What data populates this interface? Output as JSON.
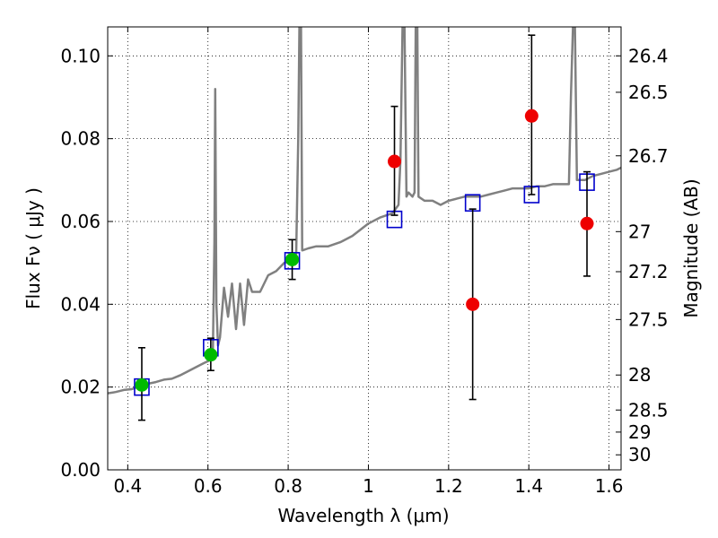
{
  "chart_data": {
    "type": "scatter",
    "xlabel": "Wavelength  λ (μm)",
    "ylabel": "Flux  Fν  ( μJy )",
    "ylabel_right": "Magnitude (AB)",
    "xlim": [
      0.35,
      1.63
    ],
    "ylim": [
      0.0,
      0.107
    ],
    "grid": true,
    "x_ticks": [
      0.4,
      0.6,
      0.8,
      1.0,
      1.2,
      1.4,
      1.6
    ],
    "x_tick_labels": [
      "0.4",
      "0.6",
      "0.8",
      "1",
      "1.2",
      "1.4",
      "1.6"
    ],
    "y_ticks": [
      0.0,
      0.02,
      0.04,
      0.06,
      0.08,
      0.1
    ],
    "y_tick_labels": [
      "0.00",
      "0.02",
      "0.04",
      "0.06",
      "0.08",
      "0.10"
    ],
    "mag_ticks": [
      26.4,
      26.5,
      26.7,
      27,
      27.2,
      27.5,
      28,
      28.5,
      29,
      30
    ],
    "mag_tick_labels": [
      "26.4",
      "26.5",
      "26.7",
      "27",
      "27.2",
      "27.5",
      "28",
      "28.5",
      "29",
      "30"
    ],
    "colors": {
      "model": "#808080",
      "model_phot": "#0000cc",
      "detections": "#00bb00",
      "upper_obs": "#ee0000",
      "errorbar": "#000000"
    },
    "series": [
      {
        "kind": "line",
        "points": [
          [
            0.35,
            0.0185
          ],
          [
            0.37,
            0.0188
          ],
          [
            0.39,
            0.0193
          ],
          [
            0.41,
            0.0195
          ],
          [
            0.43,
            0.0202
          ],
          [
            0.45,
            0.0208
          ],
          [
            0.47,
            0.0212
          ],
          [
            0.49,
            0.0218
          ],
          [
            0.51,
            0.022
          ],
          [
            0.53,
            0.0228
          ],
          [
            0.55,
            0.0238
          ],
          [
            0.57,
            0.0248
          ],
          [
            0.59,
            0.0258
          ],
          [
            0.605,
            0.0265
          ],
          [
            0.612,
            0.027
          ],
          [
            0.616,
            0.055
          ],
          [
            0.618,
            0.092
          ],
          [
            0.621,
            0.04
          ],
          [
            0.625,
            0.03
          ],
          [
            0.63,
            0.032
          ],
          [
            0.64,
            0.044
          ],
          [
            0.65,
            0.037
          ],
          [
            0.66,
            0.045
          ],
          [
            0.67,
            0.034
          ],
          [
            0.68,
            0.045
          ],
          [
            0.69,
            0.035
          ],
          [
            0.7,
            0.046
          ],
          [
            0.71,
            0.043
          ],
          [
            0.73,
            0.043
          ],
          [
            0.75,
            0.047
          ],
          [
            0.77,
            0.048
          ],
          [
            0.79,
            0.05
          ],
          [
            0.81,
            0.0505
          ],
          [
            0.82,
            0.052
          ],
          [
            0.825,
            0.08
          ],
          [
            0.828,
            0.107
          ],
          [
            0.832,
            0.107
          ],
          [
            0.835,
            0.053
          ],
          [
            0.85,
            0.0535
          ],
          [
            0.87,
            0.054
          ],
          [
            0.9,
            0.054
          ],
          [
            0.93,
            0.055
          ],
          [
            0.96,
            0.0565
          ],
          [
            0.98,
            0.058
          ],
          [
            1.0,
            0.0595
          ],
          [
            1.03,
            0.061
          ],
          [
            1.06,
            0.062
          ],
          [
            1.075,
            0.064
          ],
          [
            1.08,
            0.075
          ],
          [
            1.085,
            0.107
          ],
          [
            1.09,
            0.107
          ],
          [
            1.095,
            0.066
          ],
          [
            1.1,
            0.067
          ],
          [
            1.11,
            0.066
          ],
          [
            1.115,
            0.067
          ],
          [
            1.118,
            0.107
          ],
          [
            1.122,
            0.107
          ],
          [
            1.125,
            0.066
          ],
          [
            1.14,
            0.065
          ],
          [
            1.16,
            0.065
          ],
          [
            1.18,
            0.064
          ],
          [
            1.2,
            0.065
          ],
          [
            1.22,
            0.0655
          ],
          [
            1.24,
            0.066
          ],
          [
            1.26,
            0.066
          ],
          [
            1.28,
            0.066
          ],
          [
            1.3,
            0.0665
          ],
          [
            1.32,
            0.067
          ],
          [
            1.34,
            0.0675
          ],
          [
            1.36,
            0.068
          ],
          [
            1.38,
            0.068
          ],
          [
            1.4,
            0.068
          ],
          [
            1.42,
            0.0685
          ],
          [
            1.44,
            0.0685
          ],
          [
            1.46,
            0.069
          ],
          [
            1.48,
            0.069
          ],
          [
            1.5,
            0.069
          ],
          [
            1.505,
            0.09
          ],
          [
            1.51,
            0.107
          ],
          [
            1.515,
            0.107
          ],
          [
            1.52,
            0.07
          ],
          [
            1.54,
            0.07
          ],
          [
            1.56,
            0.071
          ],
          [
            1.58,
            0.0715
          ],
          [
            1.6,
            0.072
          ],
          [
            1.62,
            0.0725
          ],
          [
            1.63,
            0.073
          ]
        ]
      },
      {
        "kind": "squares",
        "x": [
          0.435,
          0.607,
          0.81,
          1.065,
          1.26,
          1.407,
          1.545
        ],
        "y": [
          0.02,
          0.0295,
          0.0505,
          0.0605,
          0.0645,
          0.0665,
          0.0695
        ]
      },
      {
        "kind": "green-circles",
        "x": [
          0.435,
          0.607,
          0.81
        ],
        "y": [
          0.0205,
          0.0278,
          0.0508
        ],
        "err_low": [
          0.0085,
          0.0038,
          0.0048
        ],
        "err_high": [
          0.009,
          0.004,
          0.0048
        ]
      },
      {
        "kind": "red-circles",
        "x": [
          1.065,
          1.26,
          1.407,
          1.545
        ],
        "y": [
          0.0745,
          0.04,
          0.0855,
          0.0595
        ],
        "err_low": [
          0.013,
          0.023,
          0.019,
          0.0127
        ],
        "err_high": [
          0.0133,
          0.023,
          0.0195,
          0.0125
        ]
      }
    ]
  }
}
